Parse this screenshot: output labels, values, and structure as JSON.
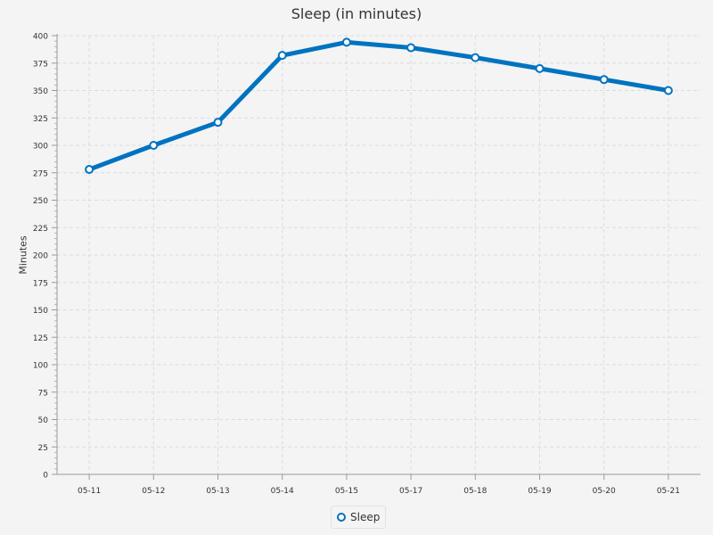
{
  "chart_data": {
    "type": "line",
    "title": "Sleep (in minutes)",
    "xlabel": "",
    "ylabel": "Minutes",
    "categories": [
      "05-11",
      "05-12",
      "05-13",
      "05-14",
      "05-15",
      "05-17",
      "05-18",
      "05-19",
      "05-20",
      "05-21"
    ],
    "series": [
      {
        "name": "Sleep",
        "values": [
          278,
          300,
          321,
          382,
          394,
          389,
          380,
          370,
          360,
          350
        ],
        "color": "#0073c0"
      }
    ],
    "ylim": [
      0,
      400
    ],
    "yticks": [
      0,
      25,
      50,
      75,
      100,
      125,
      150,
      175,
      200,
      225,
      250,
      275,
      300,
      325,
      350,
      375,
      400
    ],
    "grid": true,
    "legend_position": "bottom-center"
  }
}
